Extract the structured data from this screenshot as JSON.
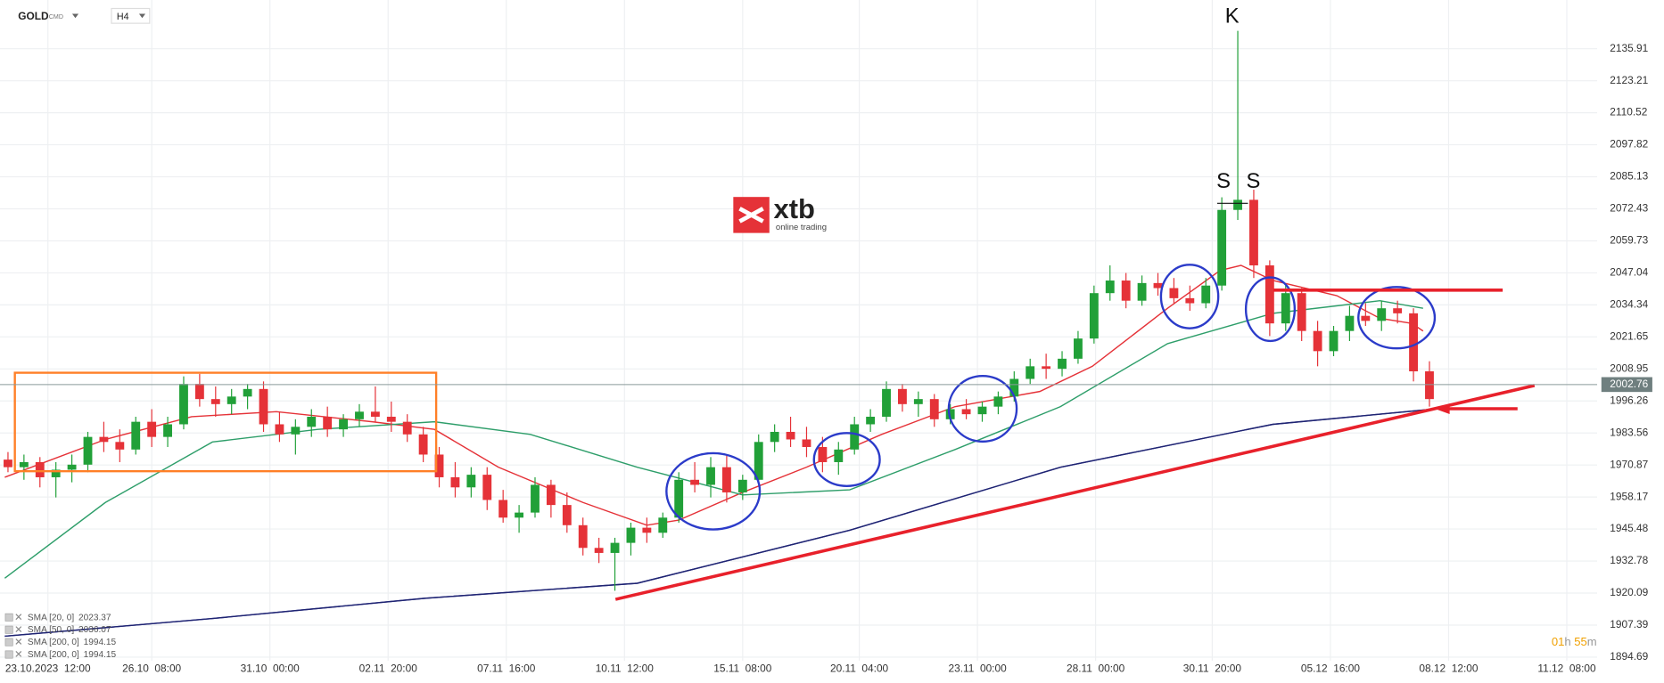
{
  "chart_data": {
    "type": "candlestick",
    "symbol": "GOLD",
    "symbol_class": "CMD",
    "timeframe": "H4",
    "watermark": {
      "brand": "xtb",
      "tagline": "online trading"
    },
    "annotations": [
      "K",
      "S",
      "S"
    ],
    "timer": {
      "hours": "01",
      "h": "h",
      "minutes": "55",
      "m": "m"
    },
    "up_color": "#21a038",
    "down_color": "#e53238",
    "grid": true,
    "xlim": [
      -0.5,
      99.5
    ],
    "xticks": [
      {
        "value": 2.5,
        "label": "23.10.2023  12:00"
      },
      {
        "value": 9.0,
        "label": "26.10  08:00"
      },
      {
        "value": 16.4,
        "label": "31.10  00:00"
      },
      {
        "value": 23.8,
        "label": "02.11  20:00"
      },
      {
        "value": 31.2,
        "label": "07.11  16:00"
      },
      {
        "value": 38.6,
        "label": "10.11  12:00"
      },
      {
        "value": 46.0,
        "label": "15.11  08:00"
      },
      {
        "value": 53.3,
        "label": "20.11  04:00"
      },
      {
        "value": 60.7,
        "label": "23.11  00:00"
      },
      {
        "value": 68.1,
        "label": "28.11  00:00"
      },
      {
        "value": 75.4,
        "label": "30.11  20:00"
      },
      {
        "value": 82.8,
        "label": "05.12  16:00"
      },
      {
        "value": 90.2,
        "label": "08.12  12:00"
      },
      {
        "value": 97.6,
        "label": "11.12  08:00"
      }
    ],
    "ylim": [
      1893.25,
      2155.22
    ],
    "yticks": [
      2135.91,
      2123.21,
      2110.52,
      2097.82,
      2085.13,
      2072.43,
      2059.73,
      2047.04,
      2034.34,
      2021.65,
      2008.95,
      1996.26,
      1983.56,
      1970.87,
      1958.17,
      1945.48,
      1932.78,
      1920.09,
      1907.39,
      1894.69
    ],
    "last_price": 2002.76,
    "ohlc": [
      [
        1973,
        1976,
        1968,
        1970
      ],
      [
        1970,
        1975,
        1965,
        1972
      ],
      [
        1972,
        1974,
        1962,
        1966
      ],
      [
        1966,
        1972,
        1958,
        1969
      ],
      [
        1969,
        1975,
        1964,
        1971
      ],
      [
        1971,
        1984,
        1968,
        1982
      ],
      [
        1982,
        1988,
        1976,
        1980
      ],
      [
        1980,
        1985,
        1972,
        1977
      ],
      [
        1977,
        1990,
        1975,
        1988
      ],
      [
        1988,
        1993,
        1978,
        1982
      ],
      [
        1982,
        1990,
        1978,
        1987
      ],
      [
        1987,
        2006,
        1985,
        2003
      ],
      [
        2003,
        2007,
        1994,
        1997
      ],
      [
        1997,
        2002,
        1990,
        1995
      ],
      [
        1995,
        2001,
        1991,
        1998
      ],
      [
        1998,
        2003,
        1993,
        2001
      ],
      [
        2001,
        2004,
        1984,
        1987
      ],
      [
        1987,
        1992,
        1980,
        1983
      ],
      [
        1983,
        1989,
        1975,
        1986
      ],
      [
        1986,
        1993,
        1982,
        1990
      ],
      [
        1990,
        1994,
        1982,
        1985
      ],
      [
        1985,
        1991,
        1982,
        1989
      ],
      [
        1989,
        1995,
        1986,
        1992
      ],
      [
        1992,
        2002,
        1988,
        1990
      ],
      [
        1990,
        1996,
        1984,
        1988
      ],
      [
        1988,
        1991,
        1980,
        1983
      ],
      [
        1983,
        1986,
        1972,
        1975
      ],
      [
        1975,
        1978,
        1962,
        1966
      ],
      [
        1966,
        1972,
        1958,
        1962
      ],
      [
        1962,
        1970,
        1958,
        1967
      ],
      [
        1967,
        1970,
        1953,
        1957
      ],
      [
        1957,
        1961,
        1948,
        1950
      ],
      [
        1950,
        1955,
        1944,
        1952
      ],
      [
        1952,
        1966,
        1950,
        1963
      ],
      [
        1963,
        1965,
        1950,
        1955
      ],
      [
        1955,
        1960,
        1944,
        1947
      ],
      [
        1947,
        1950,
        1935,
        1938
      ],
      [
        1938,
        1942,
        1932,
        1936
      ],
      [
        1936,
        1942,
        1921,
        1940
      ],
      [
        1940,
        1948,
        1935,
        1946
      ],
      [
        1946,
        1950,
        1940,
        1944
      ],
      [
        1944,
        1952,
        1942,
        1950
      ],
      [
        1950,
        1968,
        1948,
        1965
      ],
      [
        1965,
        1972,
        1960,
        1963
      ],
      [
        1963,
        1974,
        1958,
        1970
      ],
      [
        1970,
        1975,
        1956,
        1960
      ],
      [
        1960,
        1967,
        1957,
        1965
      ],
      [
        1965,
        1983,
        1963,
        1980
      ],
      [
        1980,
        1987,
        1976,
        1984
      ],
      [
        1984,
        1990,
        1978,
        1981
      ],
      [
        1981,
        1986,
        1974,
        1978
      ],
      [
        1978,
        1982,
        1968,
        1972
      ],
      [
        1972,
        1980,
        1967,
        1977
      ],
      [
        1977,
        1990,
        1975,
        1987
      ],
      [
        1987,
        1993,
        1984,
        1990
      ],
      [
        1990,
        2004,
        1988,
        2001
      ],
      [
        2001,
        2003,
        1992,
        1995
      ],
      [
        1995,
        2000,
        1990,
        1997
      ],
      [
        1997,
        1999,
        1986,
        1989
      ],
      [
        1989,
        1995,
        1987,
        1993
      ],
      [
        1993,
        1997,
        1989,
        1991
      ],
      [
        1991,
        1996,
        1988,
        1994
      ],
      [
        1994,
        2000,
        1991,
        1998
      ],
      [
        1998,
        2008,
        1996,
        2005
      ],
      [
        2005,
        2013,
        2003,
        2010
      ],
      [
        2010,
        2015,
        2005,
        2009
      ],
      [
        2009,
        2016,
        2006,
        2013
      ],
      [
        2013,
        2024,
        2011,
        2021
      ],
      [
        2021,
        2042,
        2019,
        2039
      ],
      [
        2039,
        2050,
        2036,
        2044
      ],
      [
        2044,
        2047,
        2033,
        2036
      ],
      [
        2036,
        2046,
        2034,
        2043
      ],
      [
        2043,
        2047,
        2038,
        2041
      ],
      [
        2041,
        2045,
        2035,
        2037
      ],
      [
        2037,
        2042,
        2032,
        2035
      ],
      [
        2035,
        2045,
        2033,
        2042
      ],
      [
        2042,
        2077,
        2040,
        2072
      ],
      [
        2072,
        2143,
        2068,
        2076
      ],
      [
        2076,
        2080,
        2045,
        2050
      ],
      [
        2050,
        2052,
        2022,
        2027
      ],
      [
        2027,
        2042,
        2024,
        2039
      ],
      [
        2039,
        2041,
        2020,
        2024
      ],
      [
        2024,
        2028,
        2010,
        2016
      ],
      [
        2016,
        2026,
        2014,
        2024
      ],
      [
        2024,
        2034,
        2020,
        2030
      ],
      [
        2030,
        2035,
        2026,
        2028
      ],
      [
        2028,
        2036,
        2024,
        2033
      ],
      [
        2033,
        2036,
        2027,
        2031
      ],
      [
        2031,
        2033,
        2004,
        2008
      ],
      [
        2008,
        2012,
        1994,
        1997
      ]
    ],
    "series": [
      {
        "name": "SMA [20, 0]",
        "last_value": 2023.37,
        "color": "#e53238",
        "x": [
          -0.2,
          6.1,
          11.5,
          16.8,
          22.8,
          26.7,
          30.7,
          36.0,
          40.0,
          42.0,
          46.0,
          50.0,
          54.7,
          59.3,
          64.6,
          67.9,
          72.6,
          75.9,
          77.2,
          79.2,
          83.2,
          85.9,
          87.9,
          88.6
        ],
        "values": [
          1966,
          1981,
          1990,
          1992,
          1988,
          1985,
          1970,
          1956,
          1947,
          1949,
          1960,
          1970,
          1983,
          1994,
          2000,
          2010,
          2033,
          2048,
          2050,
          2044,
          2038,
          2029,
          2027,
          2024
        ]
      },
      {
        "name": "SMA [50, 0]",
        "last_value": 2036.07,
        "color": "#2e9e6a",
        "x": [
          -0.2,
          6.1,
          12.8,
          19.4,
          26.7,
          32.7,
          39.4,
          46.0,
          52.7,
          59.3,
          65.9,
          72.6,
          79.2,
          85.9,
          88.6
        ],
        "values": [
          1926,
          1956,
          1980,
          1985,
          1988,
          1983,
          1970,
          1959,
          1961,
          1977,
          1994,
          2019,
          2031,
          2036,
          2033
        ]
      },
      {
        "name": "SMA [200, 0]",
        "last_value": 1994.15,
        "color": "#3a3fb0",
        "x": [
          -0.2,
          12.8,
          26.1,
          39.4,
          52.7,
          65.9,
          79.2,
          89.2
        ],
        "values": [
          1903,
          1910,
          1918,
          1924,
          1945,
          1970,
          1987,
          1993
        ]
      },
      {
        "name": "SMA [200, 0]",
        "last_value": 1994.15,
        "color": "#1f2470",
        "x": [
          -0.2,
          12.8,
          26.1,
          39.4,
          52.7,
          65.9,
          79.2,
          89.2
        ],
        "values": [
          1903,
          1910,
          1918,
          1924,
          1945,
          1970,
          1987,
          1993
        ]
      }
    ]
  }
}
